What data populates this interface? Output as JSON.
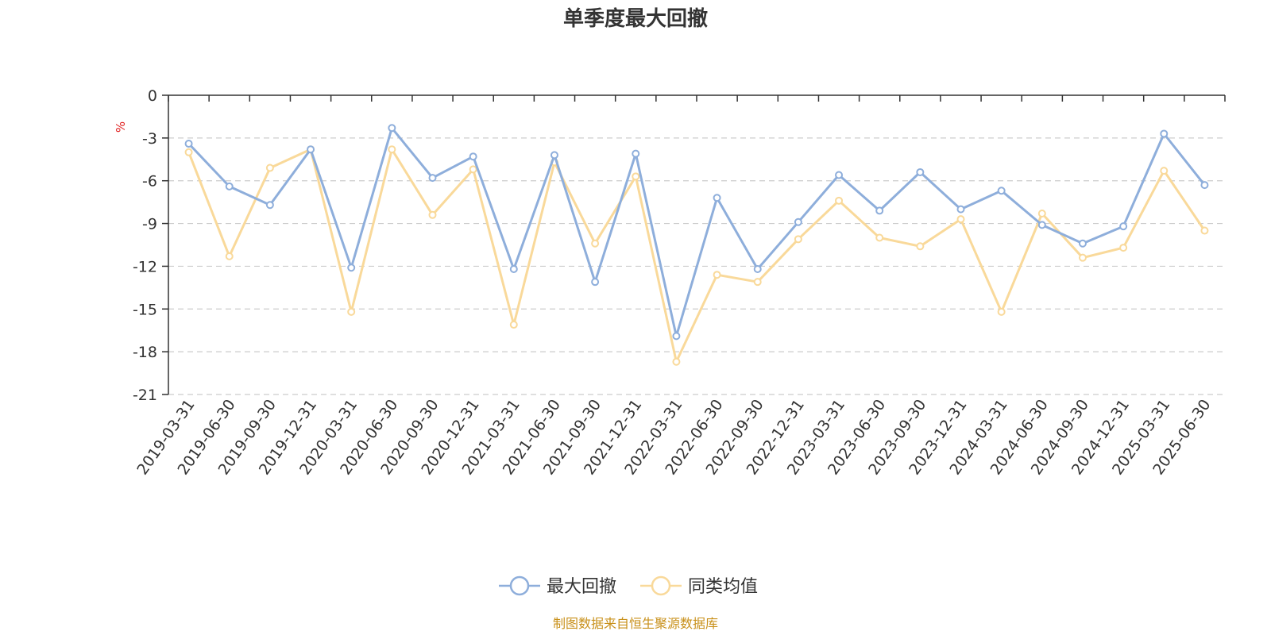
{
  "chart_data": {
    "type": "line",
    "title": "单季度最大回撤",
    "ylabel": "%",
    "ylim": [
      -21,
      0
    ],
    "yticks": [
      0,
      -3,
      -6,
      -9,
      -12,
      -15,
      -18,
      -21
    ],
    "grid": true,
    "legend_position": "bottom-center",
    "categories": [
      "2019-03-31",
      "2019-06-30",
      "2019-09-30",
      "2019-12-31",
      "2020-03-31",
      "2020-06-30",
      "2020-09-30",
      "2020-12-31",
      "2021-03-31",
      "2021-06-30",
      "2021-09-30",
      "2021-12-31",
      "2022-03-31",
      "2022-06-30",
      "2022-09-30",
      "2022-12-31",
      "2023-03-31",
      "2023-06-30",
      "2023-09-30",
      "2023-12-31",
      "2024-03-31",
      "2024-06-30",
      "2024-09-30",
      "2024-12-31",
      "2025-03-31",
      "2025-06-30"
    ],
    "series": [
      {
        "name": "最大回撤",
        "color": "#8eaedb",
        "values": [
          -3.4,
          -6.4,
          -7.7,
          -3.8,
          -12.1,
          -2.3,
          -5.8,
          -4.3,
          -12.2,
          -4.2,
          -13.1,
          -4.1,
          -16.9,
          -7.2,
          -12.2,
          -8.9,
          -5.6,
          -8.1,
          -5.4,
          -8.0,
          -6.7,
          -9.1,
          -10.4,
          -9.2,
          -2.7,
          -6.3
        ]
      },
      {
        "name": "同类均值",
        "color": "#f9d99a",
        "values": [
          -4.0,
          -11.3,
          -5.1,
          -3.8,
          -15.2,
          -3.8,
          -8.4,
          -5.2,
          -16.1,
          -4.7,
          -10.4,
          -5.7,
          -18.7,
          -12.6,
          -13.1,
          -10.1,
          -7.4,
          -10.0,
          -10.6,
          -8.7,
          -15.2,
          -8.3,
          -11.4,
          -10.7,
          -5.3,
          -9.5
        ]
      }
    ],
    "source": "制图数据来自恒生聚源数据库"
  }
}
